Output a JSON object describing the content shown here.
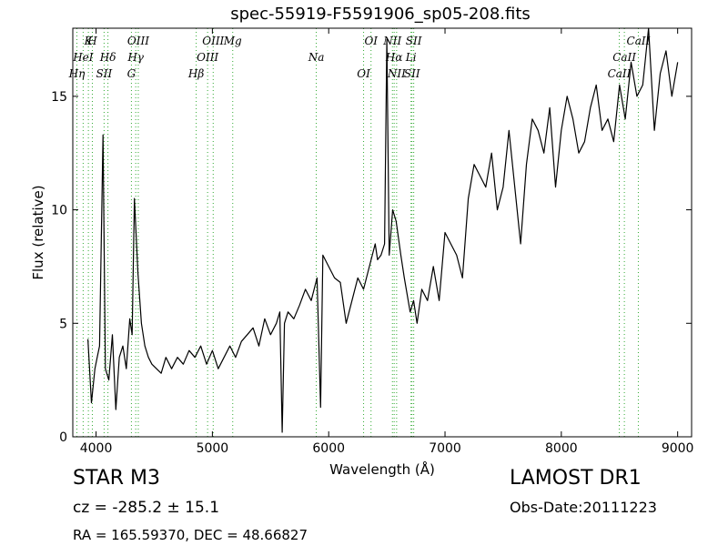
{
  "header": {
    "title": "spec-55919-F5591906_sp05-208.fits"
  },
  "footer": {
    "object_class": "STAR   M3",
    "survey": "LAMOST DR1",
    "cz": "cz = -285.2  ± 15.1",
    "obs_date": "Obs-Date:20111223",
    "ra_dec": "RA = 165.59370, DEC = 48.66827"
  },
  "chart_data": {
    "type": "line",
    "title": "spec-55919-F5591906_sp05-208.fits",
    "xlabel": "Wavelength (Å)",
    "ylabel": "Flux (relative)",
    "xlim": [
      3800,
      9120
    ],
    "ylim": [
      0,
      18
    ],
    "xticks": [
      4000,
      5000,
      6000,
      7000,
      8000,
      9000
    ],
    "yticks": [
      0,
      5,
      10,
      15
    ],
    "grid": false,
    "line_color": "#000000",
    "marker_color": "#33aa33",
    "series": [
      {
        "x": [
          3930,
          3960,
          3990,
          4010,
          4030,
          4060,
          4080,
          4110,
          4140,
          4170,
          4200,
          4230,
          4260,
          4290,
          4310,
          4330,
          4360,
          4390,
          4420,
          4450,
          4480,
          4520,
          4560,
          4600,
          4650,
          4700,
          4750,
          4800,
          4850,
          4900,
          4950,
          5000,
          5050,
          5100,
          5150,
          5200,
          5250,
          5300,
          5350,
          5400,
          5450,
          5500,
          5550,
          5580,
          5600,
          5620,
          5650,
          5700,
          5750,
          5800,
          5850,
          5900,
          5930,
          5950,
          6000,
          6050,
          6100,
          6150,
          6200,
          6250,
          6300,
          6350,
          6400,
          6420,
          6450,
          6480,
          6500,
          6520,
          6550,
          6580,
          6620,
          6650,
          6700,
          6730,
          6760,
          6800,
          6850,
          6900,
          6950,
          7000,
          7050,
          7100,
          7150,
          7200,
          7250,
          7300,
          7350,
          7400,
          7450,
          7500,
          7550,
          7600,
          7650,
          7700,
          7750,
          7800,
          7850,
          7900,
          7950,
          8000,
          8050,
          8100,
          8150,
          8200,
          8250,
          8300,
          8350,
          8400,
          8450,
          8500,
          8550,
          8600,
          8650,
          8700,
          8750,
          8800,
          8850,
          8900,
          8950,
          9000
        ],
        "y": [
          4.3,
          1.5,
          3.0,
          3.5,
          4.0,
          13.3,
          3.0,
          2.5,
          4.5,
          1.2,
          3.5,
          4.0,
          3.0,
          5.2,
          4.5,
          10.5,
          7.2,
          5.0,
          4.0,
          3.5,
          3.2,
          3.0,
          2.8,
          3.5,
          3.0,
          3.5,
          3.2,
          3.8,
          3.5,
          4.0,
          3.2,
          3.8,
          3.0,
          3.5,
          4.0,
          3.5,
          4.2,
          4.5,
          4.8,
          4.0,
          5.2,
          4.5,
          5.0,
          5.5,
          0.2,
          5.0,
          5.5,
          5.2,
          5.8,
          6.5,
          6.0,
          7.0,
          1.3,
          8.0,
          7.5,
          7.0,
          6.8,
          5.0,
          6.0,
          7.0,
          6.5,
          7.5,
          8.5,
          7.8,
          8.0,
          8.5,
          17.5,
          8.0,
          10.0,
          9.5,
          8.0,
          7.0,
          5.5,
          6.0,
          5.0,
          6.5,
          6.0,
          7.5,
          6.0,
          9.0,
          8.5,
          8.0,
          7.0,
          10.5,
          12.0,
          11.5,
          11.0,
          12.5,
          10.0,
          11.0,
          13.5,
          11.0,
          8.5,
          12.0,
          14.0,
          13.5,
          12.5,
          14.5,
          11.0,
          13.5,
          15.0,
          14.0,
          12.5,
          13.0,
          14.5,
          15.5,
          13.5,
          14.0,
          13.0,
          15.5,
          14.0,
          16.5,
          15.0,
          15.5,
          18.0,
          13.5,
          16.0,
          17.0,
          15.0,
          16.5
        ]
      }
    ],
    "line_markers": [
      {
        "label": "K",
        "x": 3934
      },
      {
        "label": "HeI",
        "x": 3889
      },
      {
        "label": "Hη",
        "x": 3835
      },
      {
        "label": "H",
        "x": 3968
      },
      {
        "label": "Hδ",
        "x": 4102
      },
      {
        "label": "SII",
        "x": 4069
      },
      {
        "label": "OIII",
        "x": 4363
      },
      {
        "label": "Hγ",
        "x": 4341
      },
      {
        "label": "G",
        "x": 4304
      },
      {
        "label": "OIII",
        "x": 5007
      },
      {
        "label": "OIII",
        "x": 4959
      },
      {
        "label": "Hβ",
        "x": 4861
      },
      {
        "label": "Mg",
        "x": 5175
      },
      {
        "label": "Na",
        "x": 5893
      },
      {
        "label": "OI",
        "x": 6300
      },
      {
        "label": "OI",
        "x": 6364
      },
      {
        "label": "Hα",
        "x": 6563
      },
      {
        "label": "SII",
        "x": 6716
      },
      {
        "label": "NII",
        "x": 6548
      },
      {
        "label": "Li",
        "x": 6708
      },
      {
        "label": "NII",
        "x": 6584
      },
      {
        "label": "SII",
        "x": 6731
      },
      {
        "label": "CaII",
        "x": 8542
      },
      {
        "label": "CaII",
        "x": 8498
      },
      {
        "label": "CaII",
        "x": 8662
      }
    ]
  }
}
